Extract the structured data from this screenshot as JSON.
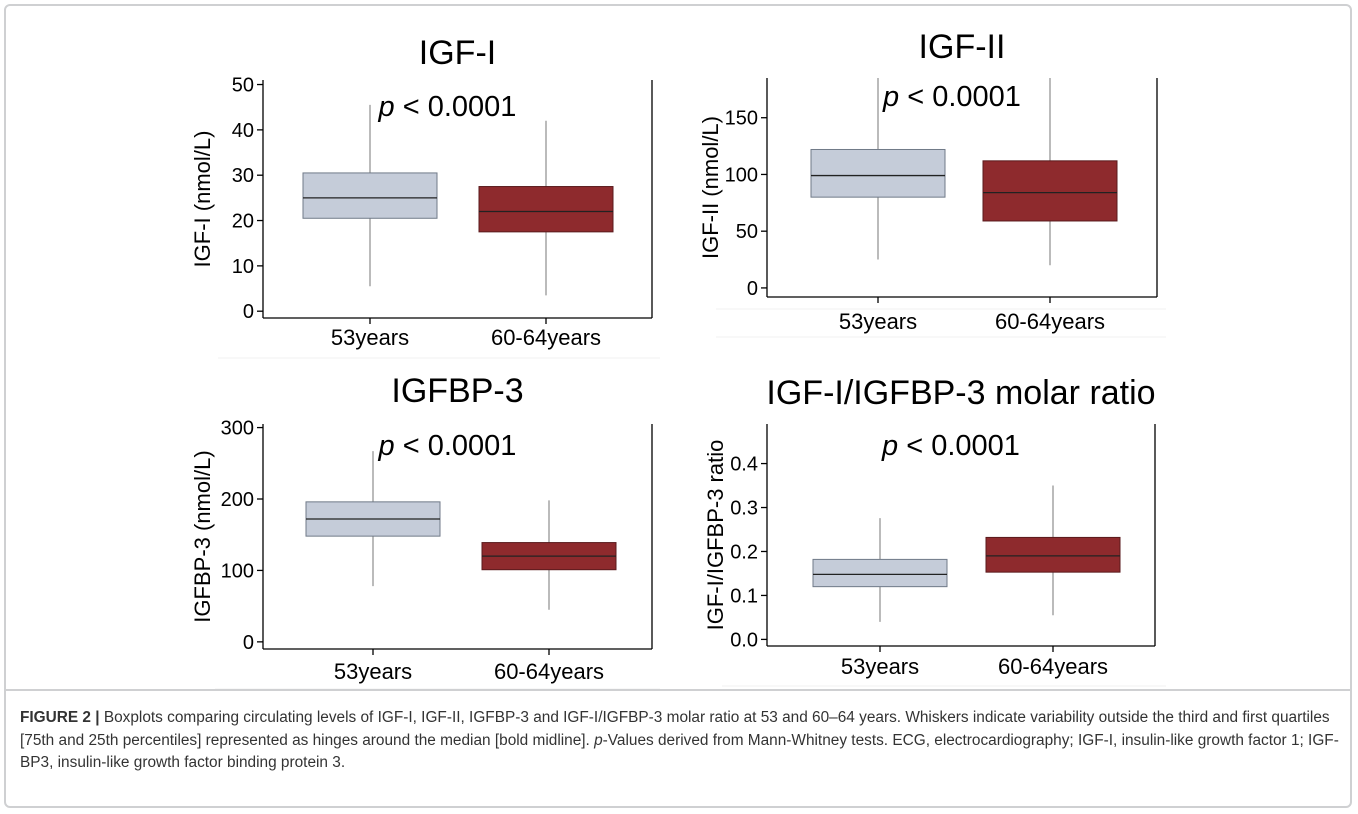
{
  "colors": {
    "box_53": "#c5ccd9",
    "box_60_64": "#8e2a2d",
    "stroke": "#555555",
    "axis": "#000000"
  },
  "chart_data": [
    {
      "type": "box",
      "title": "IGF-I",
      "ylabel": "IGF-I (nmol/L)",
      "annotation_p": "p",
      "annotation_rest": " < 0.0001",
      "categories": [
        "53years",
        "60-64years"
      ],
      "yticks": [
        0,
        10,
        20,
        30,
        40,
        50
      ],
      "ylim": [
        -1.5,
        51
      ],
      "boxes": [
        {
          "min": 5.5,
          "q1": 20.5,
          "median": 25,
          "q3": 30.5,
          "max": 45.5
        },
        {
          "min": 3.5,
          "q1": 17.5,
          "median": 22,
          "q3": 27.5,
          "max": 42
        }
      ]
    },
    {
      "type": "box",
      "title": "IGF-II",
      "ylabel": "IGF-II (nmol/L)",
      "annotation_p": "p",
      "annotation_rest": " < 0.0001",
      "categories": [
        "53years",
        "60-64years"
      ],
      "yticks": [
        0,
        50,
        100,
        150
      ],
      "ylim": [
        -8,
        185
      ],
      "boxes": [
        {
          "min": 25,
          "q1": 80,
          "median": 99,
          "q3": 122,
          "max": 185
        },
        {
          "min": 20,
          "q1": 59,
          "median": 84,
          "q3": 112,
          "max": 185
        }
      ]
    },
    {
      "type": "box",
      "title": "IGFBP-3",
      "ylabel": "IGFBP-3 (nmol/L)",
      "annotation_p": "p",
      "annotation_rest": " < 0.0001",
      "categories": [
        "53years",
        "60-64years"
      ],
      "yticks": [
        0,
        100,
        200,
        300
      ],
      "ylim": [
        -10,
        305
      ],
      "boxes": [
        {
          "min": 78,
          "q1": 148,
          "median": 172,
          "q3": 196,
          "max": 267
        },
        {
          "min": 45,
          "q1": 101,
          "median": 120,
          "q3": 139,
          "max": 198
        }
      ]
    },
    {
      "type": "box",
      "title": "IGF-I/IGFBP-3 molar ratio",
      "ylabel": "IGF-I/IGFBP-3 ratio",
      "annotation_p": "p",
      "annotation_rest": " < 0.0001",
      "categories": [
        "53years",
        "60-64years"
      ],
      "yticks": [
        0.0,
        0.1,
        0.2,
        0.3,
        0.4
      ],
      "ytick_labels": [
        "0.0",
        "0.1",
        "0.2",
        "0.3",
        "0.4"
      ],
      "ylim": [
        -0.015,
        0.49
      ],
      "boxes": [
        {
          "min": 0.04,
          "q1": 0.12,
          "median": 0.148,
          "q3": 0.182,
          "max": 0.276
        },
        {
          "min": 0.055,
          "q1": 0.153,
          "median": 0.19,
          "q3": 0.232,
          "max": 0.35
        }
      ]
    }
  ],
  "caption": {
    "label": "FIGURE 2 |",
    "text1": " Boxplots comparing circulating levels of IGF-I, IGF-II, IGFBP-3 and IGF-I/IGFBP-3 molar ratio at 53 and 60–64 years. Whiskers indicate variability outside the third and first quartiles [75th and 25th percentiles] represented as hinges around the median [bold midline]. ",
    "italic": "p",
    "text2": "-Values derived from Mann-Whitney tests. ECG, electrocardiography; IGF-I, insulin-like growth factor 1; IGF-BP3, insulin-like growth factor binding protein 3."
  }
}
